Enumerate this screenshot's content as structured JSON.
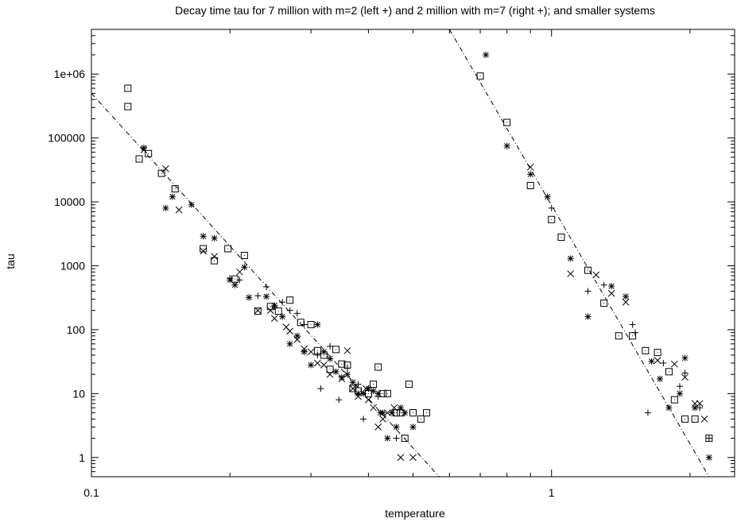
{
  "chart_data": {
    "type": "scatter",
    "title": "Decay time tau for 7 million with m=2 (left +) and 2 million with m=7 (right +); and smaller systems",
    "xlabel": "temperature",
    "ylabel": "tau",
    "xscale": "log",
    "yscale": "log",
    "xlim": [
      0.1,
      2.5
    ],
    "ylim": [
      0.5,
      5000000
    ],
    "x_ticks": [
      0.1,
      1
    ],
    "x_tick_labels": [
      "0.1",
      "1"
    ],
    "y_ticks": [
      1,
      10,
      100,
      1000,
      10000,
      100000,
      1000000
    ],
    "y_tick_labels": [
      "1",
      "10",
      "100",
      "1000",
      "10000",
      "100000",
      "1e+06"
    ],
    "grid": false,
    "legend": "none",
    "fit_lines": [
      {
        "points": [
          [
            0.1,
            500000
          ],
          [
            0.57,
            0.5
          ]
        ]
      },
      {
        "points": [
          [
            0.6,
            5000000
          ],
          [
            2.2,
            0.5
          ]
        ]
      }
    ],
    "series": [
      {
        "marker": "plus",
        "points": [
          [
            0.2,
            640
          ],
          [
            0.21,
            600
          ],
          [
            0.23,
            340
          ],
          [
            0.24,
            470
          ],
          [
            0.25,
            230
          ],
          [
            0.26,
            270
          ],
          [
            0.27,
            200
          ],
          [
            0.28,
            180
          ],
          [
            0.29,
            120
          ],
          [
            0.31,
            40
          ],
          [
            0.315,
            12
          ],
          [
            0.33,
            55
          ],
          [
            0.345,
            8
          ],
          [
            0.36,
            25
          ],
          [
            0.38,
            14
          ],
          [
            0.39,
            4
          ],
          [
            0.42,
            9
          ],
          [
            0.46,
            2
          ],
          [
            1.0,
            8000
          ],
          [
            1.2,
            400
          ],
          [
            1.3,
            500
          ],
          [
            1.5,
            120
          ],
          [
            1.52,
            90
          ],
          [
            1.62,
            5
          ],
          [
            1.75,
            30
          ],
          [
            1.9,
            13
          ],
          [
            1.95,
            21
          ],
          [
            2.1,
            6
          ],
          [
            2.2,
            2
          ]
        ]
      },
      {
        "marker": "cross",
        "points": [
          [
            0.13,
            65000
          ],
          [
            0.145,
            33000
          ],
          [
            0.155,
            7500
          ],
          [
            0.175,
            1700
          ],
          [
            0.185,
            1400
          ],
          [
            0.21,
            800
          ],
          [
            0.23,
            200
          ],
          [
            0.245,
            200
          ],
          [
            0.25,
            150
          ],
          [
            0.265,
            110
          ],
          [
            0.27,
            95
          ],
          [
            0.28,
            70
          ],
          [
            0.29,
            50
          ],
          [
            0.3,
            45
          ],
          [
            0.31,
            30
          ],
          [
            0.32,
            28
          ],
          [
            0.33,
            20
          ],
          [
            0.35,
            17
          ],
          [
            0.36,
            47
          ],
          [
            0.37,
            12
          ],
          [
            0.38,
            9
          ],
          [
            0.395,
            12
          ],
          [
            0.4,
            8
          ],
          [
            0.41,
            6
          ],
          [
            0.42,
            3
          ],
          [
            0.43,
            4
          ],
          [
            0.44,
            5
          ],
          [
            0.455,
            6
          ],
          [
            0.47,
            1
          ],
          [
            0.5,
            1
          ],
          [
            0.9,
            35000
          ],
          [
            1.1,
            750
          ],
          [
            1.25,
            720
          ],
          [
            1.35,
            370
          ],
          [
            1.45,
            270
          ],
          [
            1.7,
            33
          ],
          [
            1.85,
            29
          ],
          [
            1.95,
            18
          ],
          [
            2.05,
            7
          ],
          [
            2.1,
            7
          ],
          [
            2.15,
            4
          ]
        ]
      },
      {
        "marker": "star",
        "points": [
          [
            0.13,
            70000
          ],
          [
            0.145,
            8000
          ],
          [
            0.15,
            12000
          ],
          [
            0.165,
            9000
          ],
          [
            0.175,
            2900
          ],
          [
            0.185,
            2700
          ],
          [
            0.2,
            600
          ],
          [
            0.205,
            500
          ],
          [
            0.215,
            950
          ],
          [
            0.22,
            320
          ],
          [
            0.24,
            330
          ],
          [
            0.25,
            240
          ],
          [
            0.26,
            160
          ],
          [
            0.27,
            60
          ],
          [
            0.28,
            80
          ],
          [
            0.29,
            45
          ],
          [
            0.3,
            28
          ],
          [
            0.31,
            120
          ],
          [
            0.32,
            45
          ],
          [
            0.33,
            35
          ],
          [
            0.34,
            22
          ],
          [
            0.35,
            18
          ],
          [
            0.36,
            20
          ],
          [
            0.37,
            15
          ],
          [
            0.38,
            10
          ],
          [
            0.39,
            10
          ],
          [
            0.4,
            12
          ],
          [
            0.41,
            11
          ],
          [
            0.42,
            10
          ],
          [
            0.425,
            5
          ],
          [
            0.43,
            5
          ],
          [
            0.44,
            2
          ],
          [
            0.45,
            5
          ],
          [
            0.46,
            3
          ],
          [
            0.47,
            6
          ],
          [
            0.48,
            5
          ],
          [
            0.5,
            3
          ],
          [
            0.72,
            2000000
          ],
          [
            0.8,
            75000
          ],
          [
            0.9,
            27000
          ],
          [
            0.98,
            12000
          ],
          [
            1.1,
            1300
          ],
          [
            1.2,
            160
          ],
          [
            1.35,
            480
          ],
          [
            1.45,
            330
          ],
          [
            1.65,
            32
          ],
          [
            1.72,
            17
          ],
          [
            1.8,
            6
          ],
          [
            1.9,
            10
          ],
          [
            1.95,
            36
          ],
          [
            2.05,
            6
          ],
          [
            2.2,
            1
          ]
        ]
      },
      {
        "marker": "square",
        "points": [
          [
            0.12,
            600000
          ],
          [
            0.12,
            310000
          ],
          [
            0.127,
            47000
          ],
          [
            0.133,
            57000
          ],
          [
            0.142,
            28000
          ],
          [
            0.152,
            16000
          ],
          [
            0.175,
            1850
          ],
          [
            0.185,
            1200
          ],
          [
            0.198,
            1850
          ],
          [
            0.205,
            620
          ],
          [
            0.215,
            1450
          ],
          [
            0.23,
            195
          ],
          [
            0.245,
            230
          ],
          [
            0.255,
            195
          ],
          [
            0.27,
            290
          ],
          [
            0.285,
            130
          ],
          [
            0.3,
            120
          ],
          [
            0.31,
            47
          ],
          [
            0.32,
            40
          ],
          [
            0.33,
            24
          ],
          [
            0.34,
            49
          ],
          [
            0.35,
            29
          ],
          [
            0.36,
            28
          ],
          [
            0.37,
            12
          ],
          [
            0.38,
            11
          ],
          [
            0.4,
            10
          ],
          [
            0.41,
            14
          ],
          [
            0.42,
            26
          ],
          [
            0.43,
            10
          ],
          [
            0.44,
            10
          ],
          [
            0.46,
            5
          ],
          [
            0.47,
            5
          ],
          [
            0.48,
            2
          ],
          [
            0.49,
            14
          ],
          [
            0.5,
            5
          ],
          [
            0.52,
            4
          ],
          [
            0.535,
            5
          ],
          [
            0.7,
            930000
          ],
          [
            0.8,
            175000
          ],
          [
            0.9,
            18000
          ],
          [
            1.0,
            5300
          ],
          [
            1.05,
            2800
          ],
          [
            1.2,
            850
          ],
          [
            1.3,
            260
          ],
          [
            1.4,
            80
          ],
          [
            1.5,
            80
          ],
          [
            1.6,
            47
          ],
          [
            1.7,
            44
          ],
          [
            1.8,
            22
          ],
          [
            1.85,
            8
          ],
          [
            1.95,
            4
          ],
          [
            2.05,
            4
          ],
          [
            2.2,
            2
          ]
        ]
      }
    ]
  }
}
